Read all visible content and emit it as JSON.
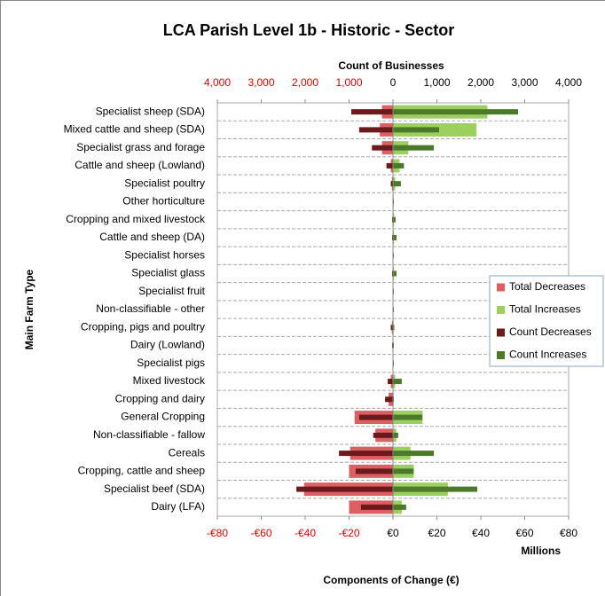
{
  "chart_data": {
    "type": "diverging_bar",
    "title": "LCA Parish Level 1b - Historic - Sector",
    "x2_axis_title": "Count of Businesses",
    "y_axis_title": "Main Farm Type",
    "x_axis_title": "Components of Change (€)",
    "x_units_label": "Millions",
    "categories": [
      "Specialist sheep (SDA)",
      "Mixed cattle and sheep (SDA)",
      "Specialist grass and forage",
      "Cattle and sheep (Lowland)",
      "Specialist poultry",
      "Other horticulture",
      "Cropping and mixed livestock",
      "Cattle and sheep (DA)",
      "Specialist horses",
      "Specialist glass",
      "Specialist fruit",
      "Non-classifiable - other",
      "Cropping, pigs and poultry",
      "Dairy (Lowland)",
      "Specialist pigs",
      "Mixed livestock",
      "Cropping and dairy",
      "General Cropping",
      "Non-classifiable - fallow",
      "Cereals",
      "Cropping, cattle and sheep",
      "Specialist beef (SDA)",
      "Dairy (LFA)"
    ],
    "series": [
      {
        "name": "Total Decreases",
        "color": "#dc5f64",
        "axis": "x",
        "values": [
          -5,
          -6,
          -5,
          -1,
          -0.5,
          0,
          -0.2,
          -0.2,
          0,
          -0.2,
          0,
          0,
          -0.5,
          -0.2,
          -0.2,
          -1,
          -2,
          -17.5,
          -8,
          -19.5,
          -20,
          -40.5,
          -20
        ]
      },
      {
        "name": "Total Increases",
        "color": "#9bcf5e",
        "axis": "x",
        "values": [
          43,
          38,
          7,
          3,
          1,
          0.3,
          0.5,
          0.5,
          0.2,
          0.5,
          0.2,
          0.2,
          0.3,
          0.2,
          0.2,
          1,
          0.3,
          13.5,
          1.5,
          8,
          9.5,
          25,
          4
        ]
      },
      {
        "name": "Count Decreases",
        "color": "#6b1a1c",
        "axis": "x2",
        "values": [
          -950,
          -770,
          -480,
          -150,
          -50,
          -10,
          -20,
          -20,
          -5,
          -20,
          -5,
          -10,
          -50,
          -20,
          -10,
          -120,
          -180,
          -770,
          -450,
          -1230,
          -850,
          -2200,
          -730
        ]
      },
      {
        "name": "Count Increases",
        "color": "#4b7a2b",
        "axis": "x2",
        "values": [
          2850,
          1050,
          930,
          250,
          180,
          20,
          60,
          80,
          20,
          80,
          20,
          20,
          30,
          20,
          20,
          200,
          20,
          670,
          120,
          930,
          470,
          1920,
          300
        ]
      }
    ],
    "xlim": [
      -80,
      80
    ],
    "xticks": [
      {
        "value": -80,
        "label": "-€80"
      },
      {
        "value": -60,
        "label": "-€60"
      },
      {
        "value": -40,
        "label": "-€40"
      },
      {
        "value": -20,
        "label": "-€20"
      },
      {
        "value": 0,
        "label": "€0"
      },
      {
        "value": 20,
        "label": "€20"
      },
      {
        "value": 40,
        "label": "€40"
      },
      {
        "value": 60,
        "label": "€60"
      },
      {
        "value": 80,
        "label": "€80"
      }
    ],
    "x2lim": [
      -4000,
      4000
    ],
    "x2ticks": [
      {
        "value": -4000,
        "label": "4,000"
      },
      {
        "value": -3000,
        "label": "3,000"
      },
      {
        "value": -2000,
        "label": "2,000"
      },
      {
        "value": -1000,
        "label": "1,000"
      },
      0,
      {
        "value": 1000,
        "label": "1,000"
      },
      {
        "value": 2000,
        "label": "2,000"
      },
      {
        "value": 3000,
        "label": "3,000"
      },
      {
        "value": 4000,
        "label": "4,000"
      }
    ],
    "negative_tick_color": "#e00000",
    "legend": "right"
  }
}
